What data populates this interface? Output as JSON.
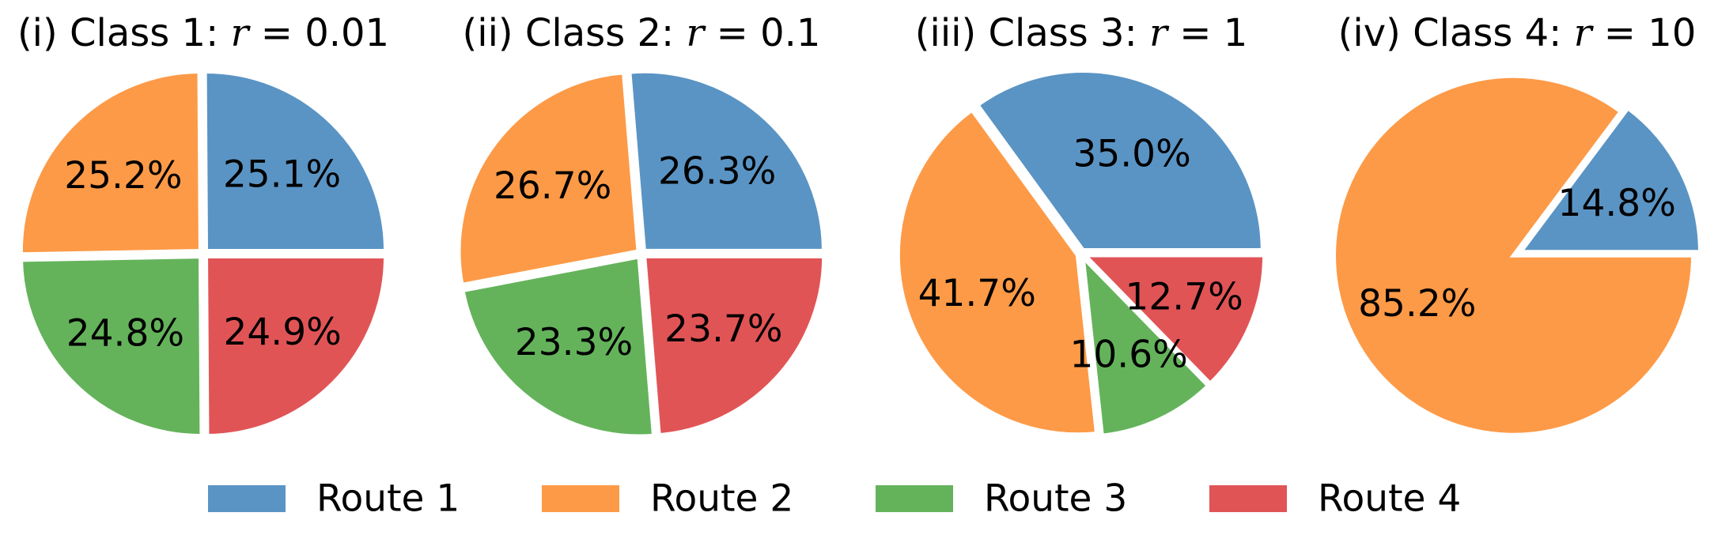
{
  "chart_data": [
    {
      "type": "pie",
      "title_prefix": "(i) Class 1: ",
      "title_var": "r",
      "title_eq": " = 0.01",
      "labels": [
        "Route 1",
        "Route 2",
        "Route 3",
        "Route 4"
      ],
      "values": [
        25.1,
        25.2,
        24.8,
        24.9
      ],
      "value_labels": [
        "25.1%",
        "25.2%",
        "24.8%",
        "24.9%"
      ]
    },
    {
      "type": "pie",
      "title_prefix": "(ii) Class 2: ",
      "title_var": "r",
      "title_eq": " = 0.1",
      "labels": [
        "Route 1",
        "Route 2",
        "Route 3",
        "Route 4"
      ],
      "values": [
        26.3,
        26.7,
        23.3,
        23.7
      ],
      "value_labels": [
        "26.3%",
        "26.7%",
        "23.3%",
        "23.7%"
      ]
    },
    {
      "type": "pie",
      "title_prefix": "(iii) Class 3: ",
      "title_var": "r",
      "title_eq": " = 1",
      "labels": [
        "Route 1",
        "Route 2",
        "Route 3",
        "Route 4"
      ],
      "values": [
        35.0,
        41.7,
        10.6,
        12.7
      ],
      "value_labels": [
        "35.0%",
        "41.7%",
        "10.6%",
        "12.7%"
      ]
    },
    {
      "type": "pie",
      "title_prefix": "(iv) Class 4: ",
      "title_var": "r",
      "title_eq": " = 10",
      "labels": [
        "Route 1",
        "Route 2"
      ],
      "values": [
        14.8,
        85.2
      ],
      "value_labels": [
        "14.8%",
        "85.2%"
      ]
    }
  ],
  "legend": {
    "placement": "bottom",
    "entries": [
      {
        "name": "Route 1",
        "color": "#5a94c4"
      },
      {
        "name": "Route 2",
        "color": "#fd9a47"
      },
      {
        "name": "Route 3",
        "color": "#64b35b"
      },
      {
        "name": "Route 4",
        "color": "#e15456"
      }
    ]
  },
  "start_angle_deg": 0,
  "direction": "counterclockwise",
  "wedge_edge_color": "#ffffff"
}
